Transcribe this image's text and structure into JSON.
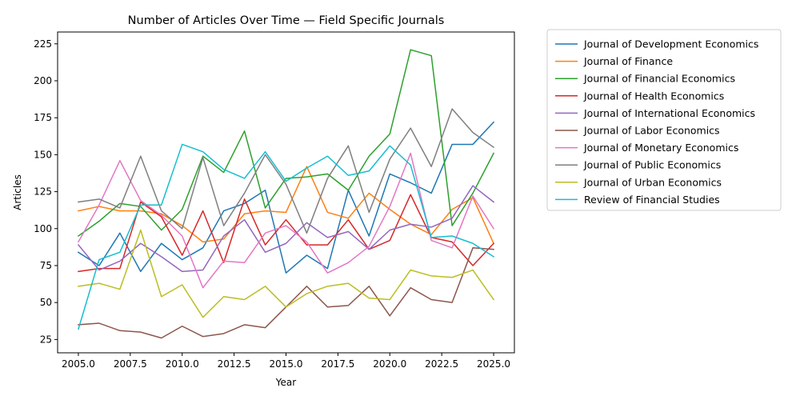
{
  "chart_data": {
    "type": "line",
    "title": "Number of Articles Over Time — Field Specific Journals",
    "xlabel": "Year",
    "ylabel": "Articles",
    "xlim": [
      2004,
      2026
    ],
    "ylim": [
      16,
      233
    ],
    "xticks": [
      2005,
      2007.5,
      2010,
      2012.5,
      2015,
      2017.5,
      2020,
      2022.5,
      2025
    ],
    "xtick_labels": [
      "2005.0",
      "2007.5",
      "2010.0",
      "2012.5",
      "2015.0",
      "2017.5",
      "2020.0",
      "2022.5",
      "2025.0"
    ],
    "yticks": [
      25,
      50,
      75,
      100,
      125,
      150,
      175,
      200,
      225
    ],
    "ytick_labels": [
      "25",
      "50",
      "75",
      "100",
      "125",
      "150",
      "175",
      "200",
      "225"
    ],
    "grid": false,
    "legend_position": "outside-right-top",
    "x": [
      2005,
      2006,
      2007,
      2008,
      2009,
      2010,
      2011,
      2012,
      2013,
      2014,
      2015,
      2016,
      2017,
      2018,
      2019,
      2020,
      2021,
      2022,
      2023,
      2024,
      2025
    ],
    "series": [
      {
        "name": "Journal of Development Economics",
        "color": "#1f77b4",
        "values": [
          84,
          75,
          97,
          71,
          90,
          79,
          87,
          112,
          117,
          126,
          70,
          82,
          73,
          126,
          95,
          137,
          131,
          124,
          157,
          157,
          172
        ]
      },
      {
        "name": "Journal of Finance",
        "color": "#ff7f0e",
        "values": [
          112,
          115,
          112,
          112,
          110,
          102,
          91,
          93,
          110,
          112,
          111,
          142,
          111,
          107,
          124,
          113,
          103,
          96,
          113,
          121,
          90
        ]
      },
      {
        "name": "Journal of Financial Economics",
        "color": "#2ca02c",
        "values": [
          95,
          105,
          117,
          115,
          99,
          113,
          149,
          138,
          166,
          114,
          134,
          135,
          137,
          126,
          149,
          164,
          221,
          217,
          102,
          124,
          151
        ]
      },
      {
        "name": "Journal of Health Economics",
        "color": "#d62728",
        "values": [
          71,
          73,
          73,
          118,
          108,
          82,
          112,
          77,
          120,
          89,
          106,
          89,
          89,
          106,
          86,
          92,
          123,
          94,
          91,
          75,
          90
        ]
      },
      {
        "name": "Journal of International Economics",
        "color": "#9467bd",
        "values": [
          89,
          72,
          78,
          90,
          81,
          71,
          72,
          95,
          106,
          84,
          90,
          104,
          94,
          98,
          86,
          99,
          103,
          101,
          107,
          129,
          118
        ]
      },
      {
        "name": "Journal of Labor Economics",
        "color": "#8c564b",
        "values": [
          35,
          36,
          31,
          30,
          26,
          34,
          27,
          29,
          35,
          33,
          47,
          61,
          47,
          48,
          61,
          41,
          60,
          52,
          50,
          87,
          86
        ]
      },
      {
        "name": "Journal of Monetary Economics",
        "color": "#e377c2",
        "values": [
          91,
          116,
          146,
          119,
          109,
          95,
          60,
          78,
          77,
          97,
          102,
          91,
          70,
          77,
          88,
          115,
          151,
          92,
          87,
          122,
          100
        ]
      },
      {
        "name": "Journal of Public Economics",
        "color": "#7f7f7f",
        "values": [
          118,
          120,
          114,
          149,
          112,
          100,
          148,
          102,
          124,
          150,
          130,
          97,
          134,
          156,
          111,
          147,
          168,
          142,
          181,
          165,
          155
        ]
      },
      {
        "name": "Journal of Urban Economics",
        "color": "#bcbd22",
        "values": [
          61,
          63,
          59,
          99,
          54,
          62,
          40,
          54,
          52,
          61,
          47,
          56,
          61,
          63,
          53,
          52,
          72,
          68,
          67,
          72,
          52
        ]
      },
      {
        "name": "Review of Financial Studies",
        "color": "#17becf",
        "values": [
          32,
          79,
          84,
          116,
          116,
          157,
          152,
          140,
          134,
          152,
          132,
          141,
          149,
          136,
          139,
          156,
          143,
          94,
          95,
          90,
          81
        ]
      }
    ]
  }
}
